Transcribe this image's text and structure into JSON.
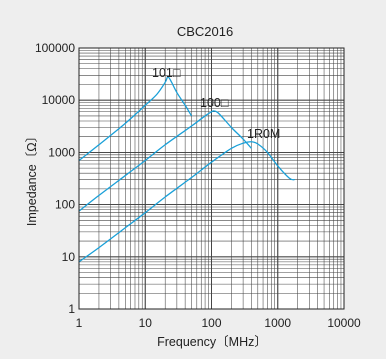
{
  "chart_data": {
    "type": "line",
    "title": "CBC2016",
    "xlabel": "Frequency〔MHz〕",
    "ylabel": "Impedance〔Ω〕",
    "x_scale": "log",
    "y_scale": "log",
    "xlim": [
      1,
      10000
    ],
    "ylim": [
      1,
      100000
    ],
    "grid": true,
    "x_ticks": [
      "1",
      "10",
      "100",
      "1000",
      "10000"
    ],
    "y_ticks": [
      "1",
      "10",
      "100",
      "1000",
      "10000",
      "100000"
    ],
    "series_color": "#1aa0d8",
    "series": [
      {
        "name": "101□",
        "x": [
          1,
          2,
          5,
          10,
          15,
          20,
          22,
          25,
          30,
          40,
          50
        ],
        "y": [
          700,
          1400,
          3600,
          8000,
          13000,
          22000,
          28000,
          22000,
          14000,
          8000,
          5000
        ]
      },
      {
        "name": "100□",
        "x": [
          1,
          2,
          5,
          10,
          20,
          50,
          80,
          100,
          110,
          130,
          200,
          300,
          400
        ],
        "y": [
          75,
          150,
          360,
          700,
          1400,
          3200,
          5000,
          6000,
          6200,
          5500,
          3000,
          1800,
          1200
        ]
      },
      {
        "name": "1R0M",
        "x": [
          1,
          2,
          5,
          10,
          20,
          50,
          100,
          200,
          300,
          400,
          500,
          700,
          1000,
          1500,
          1800
        ],
        "y": [
          8,
          15,
          36,
          70,
          140,
          330,
          650,
          1200,
          1500,
          1600,
          1450,
          1000,
          550,
          320,
          300
        ]
      }
    ]
  }
}
